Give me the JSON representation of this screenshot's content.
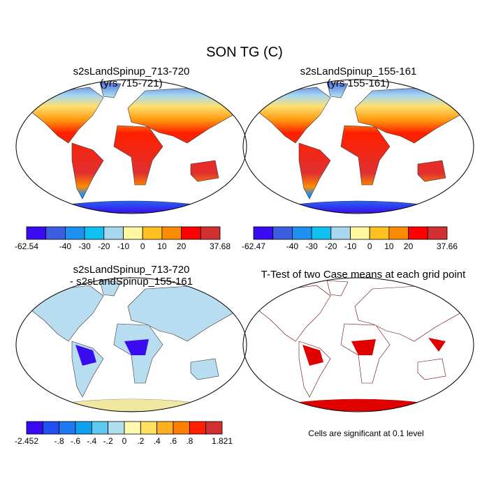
{
  "title": "SON TG (C)",
  "panels": [
    {
      "title": "s2sLandSpinup_713-720",
      "subtitle": "(yrs 715-721)",
      "colorbar": {
        "colors": [
          "#3a0bf0",
          "#3b5fe0",
          "#1e90f0",
          "#10c0f0",
          "#a8d8f0",
          "#fff8a0",
          "#ffc020",
          "#ff8c00",
          "#ff0000",
          "#d03030"
        ],
        "labels": [
          "-62.54",
          null,
          "-40",
          "-30",
          "-20",
          "-10",
          "0",
          "10",
          "20",
          null,
          "37.68"
        ]
      }
    },
    {
      "title": "s2sLandSpinup_155-161",
      "subtitle": "(yrs 155-161)",
      "colorbar": {
        "colors": [
          "#3a0bf0",
          "#3b5fe0",
          "#1e90f0",
          "#10c0f0",
          "#a8d8f0",
          "#fff8a0",
          "#ffc020",
          "#ff8c00",
          "#ff0000",
          "#d03030"
        ],
        "labels": [
          "-62.47",
          null,
          "-40",
          "-30",
          "-20",
          "-10",
          "0",
          "10",
          "20",
          null,
          "37.66"
        ]
      }
    },
    {
      "title": "s2sLandSpinup_713-720",
      "subtitle": "- s2sLandSpinup_155-161",
      "colorbar": {
        "colors": [
          "#3a0bf0",
          "#2050f0",
          "#1e78f0",
          "#10a0f0",
          "#60c8f0",
          "#b0e0f0",
          "#fff8b0",
          "#ffe060",
          "#ffb020",
          "#ff8000",
          "#ff2000",
          "#d03030"
        ],
        "labels": [
          "-2.452",
          null,
          "-.8",
          "-.6",
          "-.4",
          "-.2",
          "0",
          ".2",
          ".4",
          ".6",
          ".8",
          null,
          "1.821"
        ]
      }
    },
    {
      "title": "T-Test of two Case means at each grid point",
      "note": "Cells are significant at 0.1 level"
    }
  ]
}
